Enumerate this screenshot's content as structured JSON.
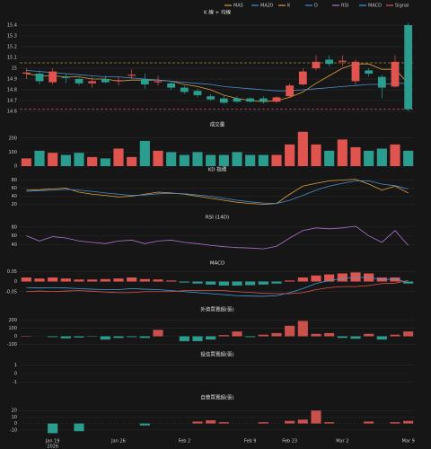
{
  "chart_data": [
    {
      "type": "candlestick",
      "title": "K 線 + 均線",
      "year_label": "2026",
      "categories": [
        null,
        null,
        "Jan 19",
        null,
        null,
        null,
        null,
        "Jan 26",
        null,
        null,
        null,
        null,
        "Feb 2",
        null,
        null,
        null,
        null,
        "Feb 9",
        null,
        null,
        "Feb 23",
        null,
        null,
        null,
        "Mar 2",
        null,
        null,
        null,
        null,
        "Mar 9"
      ],
      "open": [
        14.95,
        14.95,
        14.87,
        14.92,
        14.9,
        14.86,
        14.9,
        14.88,
        14.93,
        14.9,
        14.87,
        14.86,
        14.82,
        14.79,
        14.74,
        14.72,
        14.72,
        14.72,
        14.72,
        14.69,
        14.74,
        14.85,
        15.0,
        15.08,
        15.06,
        14.88,
        14.98,
        14.92,
        14.83,
        15.4
      ],
      "high": [
        15.0,
        14.98,
        15.0,
        14.95,
        14.92,
        14.92,
        14.93,
        14.92,
        14.99,
        14.95,
        14.93,
        14.88,
        14.84,
        14.81,
        14.76,
        14.74,
        14.74,
        14.73,
        14.74,
        14.74,
        14.86,
        15.0,
        15.12,
        15.12,
        15.12,
        15.08,
        15.0,
        14.94,
        15.12,
        15.42
      ],
      "low": [
        14.9,
        14.85,
        14.85,
        14.86,
        14.84,
        14.82,
        14.86,
        14.84,
        14.9,
        14.81,
        14.84,
        14.8,
        14.76,
        14.73,
        14.7,
        14.67,
        14.68,
        14.68,
        14.67,
        14.68,
        14.73,
        14.84,
        14.98,
        15.02,
        15.02,
        14.85,
        14.92,
        14.72,
        14.82,
        14.6
      ],
      "close": [
        14.96,
        14.88,
        14.97,
        14.91,
        14.86,
        14.88,
        14.87,
        14.89,
        14.94,
        14.85,
        14.88,
        14.82,
        14.78,
        14.75,
        14.71,
        14.68,
        14.69,
        14.69,
        14.69,
        14.73,
        14.84,
        14.97,
        15.06,
        15.04,
        15.07,
        15.06,
        14.95,
        14.82,
        15.06,
        14.62
      ],
      "up_color": "#e0544f",
      "down_color": "#2a9d8f",
      "series": [
        {
          "name": "MA5",
          "color": "#e0a040",
          "values": [
            14.95,
            14.93,
            14.93,
            14.92,
            14.92,
            14.9,
            14.9,
            14.88,
            14.89,
            14.89,
            14.89,
            14.88,
            14.85,
            14.83,
            14.8,
            14.75,
            14.72,
            14.7,
            14.69,
            14.7,
            14.73,
            14.78,
            14.86,
            14.93,
            15.0,
            15.04,
            15.04,
            14.99,
            14.99,
            14.86
          ]
        },
        {
          "name": "MA20",
          "color": "#4a8fd0",
          "values": [
            14.98,
            14.97,
            14.96,
            14.95,
            14.94,
            14.93,
            14.92,
            14.92,
            14.91,
            14.9,
            14.89,
            14.88,
            14.87,
            14.86,
            14.85,
            14.83,
            14.82,
            14.81,
            14.8,
            14.79,
            14.79,
            14.8,
            14.81,
            14.82,
            14.83,
            14.84,
            14.85,
            14.85,
            14.86,
            14.86
          ]
        }
      ],
      "ref_lines": [
        {
          "value": 15.05,
          "color": "#e8c547"
        },
        {
          "value": 14.62,
          "color": "#e05080"
        }
      ],
      "ylim": [
        14.55,
        15.45
      ],
      "yticks": [
        14.6,
        14.7,
        14.8,
        14.9,
        15,
        15.1,
        15.2,
        15.3,
        15.4
      ]
    },
    {
      "type": "bar",
      "title": "成交量",
      "color_by_candle": true,
      "values": [
        55,
        110,
        95,
        80,
        95,
        65,
        55,
        125,
        65,
        180,
        110,
        100,
        80,
        100,
        80,
        80,
        100,
        80,
        80,
        80,
        155,
        245,
        155,
        110,
        190,
        135,
        110,
        125,
        155,
        110
      ],
      "ylim": [
        0,
        250
      ],
      "yticks": [
        0,
        100,
        200
      ]
    },
    {
      "type": "line",
      "title": "KD 指標",
      "series": [
        {
          "name": "K",
          "color": "#e0a040",
          "values": [
            55,
            56,
            58,
            60,
            50,
            45,
            42,
            38,
            40,
            45,
            50,
            48,
            45,
            40,
            35,
            30,
            25,
            22,
            20,
            22,
            45,
            65,
            72,
            78,
            80,
            82,
            70,
            55,
            65,
            48
          ]
        },
        {
          "name": "D",
          "color": "#4a8fd0",
          "values": [
            52,
            54,
            55,
            57,
            55,
            52,
            48,
            45,
            42,
            43,
            46,
            47,
            46,
            43,
            40,
            35,
            30,
            26,
            23,
            22,
            30,
            42,
            55,
            65,
            72,
            78,
            78,
            70,
            66,
            58
          ]
        }
      ],
      "ylim": [
        10,
        90
      ],
      "yticks": [
        20,
        40,
        60,
        80
      ]
    },
    {
      "type": "line",
      "title": "RSI (14D)",
      "series": [
        {
          "name": "RSI",
          "color": "#b070d0",
          "values": [
            60,
            48,
            58,
            55,
            48,
            45,
            42,
            48,
            50,
            42,
            48,
            50,
            45,
            42,
            38,
            35,
            33,
            32,
            30,
            36,
            55,
            72,
            78,
            76,
            78,
            82,
            60,
            45,
            72,
            38
          ]
        }
      ],
      "ylim": [
        20,
        90
      ],
      "yticks": [
        40,
        60,
        80
      ]
    },
    {
      "type": "macd",
      "title": "MACD",
      "pos_color": "#e0544f",
      "neg_color": "#2a9d8f",
      "histogram": [
        0.02,
        0.015,
        0.02,
        0.015,
        0.01,
        0.01,
        0.012,
        0.015,
        0.02,
        0.012,
        0.01,
        0.005,
        -0.005,
        -0.01,
        -0.015,
        -0.02,
        -0.02,
        -0.018,
        -0.015,
        -0.01,
        0.005,
        0.02,
        0.03,
        0.035,
        0.04,
        0.045,
        0.04,
        0.02,
        0.02,
        -0.01
      ],
      "series": [
        {
          "name": "MACD",
          "color": "#3fa0e0",
          "values": [
            -0.03,
            -0.032,
            -0.03,
            -0.032,
            -0.035,
            -0.038,
            -0.04,
            -0.04,
            -0.035,
            -0.038,
            -0.04,
            -0.045,
            -0.05,
            -0.055,
            -0.06,
            -0.065,
            -0.07,
            -0.072,
            -0.073,
            -0.07,
            -0.055,
            -0.035,
            -0.01,
            0.005,
            0.015,
            0.02,
            0.02,
            0.01,
            0.012,
            -0.005
          ]
        },
        {
          "name": "Signal",
          "color": "#e0544f",
          "values": [
            -0.05,
            -0.047,
            -0.05,
            -0.047,
            -0.045,
            -0.048,
            -0.052,
            -0.055,
            -0.055,
            -0.05,
            -0.05,
            -0.05,
            -0.045,
            -0.045,
            -0.045,
            -0.045,
            -0.05,
            -0.054,
            -0.058,
            -0.06,
            -0.06,
            -0.055,
            -0.04,
            -0.03,
            -0.025,
            -0.025,
            -0.02,
            -0.01,
            -0.008,
            0.005
          ]
        }
      ],
      "ylim": [
        -0.1,
        0.06
      ],
      "yticks": [
        -0.05,
        0,
        0.05
      ]
    },
    {
      "type": "bar",
      "title": "外資買賣超(張)",
      "pos_color": "#c9504b",
      "neg_color": "#2a9d8f",
      "values": [
        5,
        0,
        -10,
        -25,
        -15,
        -5,
        -40,
        -20,
        -10,
        -20,
        80,
        0,
        -60,
        -60,
        -40,
        15,
        60,
        -10,
        20,
        40,
        130,
        190,
        30,
        40,
        -20,
        -30,
        30,
        -40,
        20,
        60
      ],
      "ylim": [
        -150,
        250
      ],
      "yticks": [
        -100,
        0,
        100,
        200
      ]
    },
    {
      "type": "bar",
      "title": "投信買賣超(張)",
      "pos_color": "#c9504b",
      "neg_color": "#2a9d8f",
      "values": [
        0,
        0,
        0,
        0,
        0,
        0,
        0,
        0,
        0,
        0,
        0,
        0,
        0,
        0,
        0,
        0,
        0,
        0,
        0,
        0,
        0,
        0,
        0,
        0,
        0,
        0,
        0,
        0,
        0,
        0
      ],
      "ylim": [
        -1.5,
        1.5
      ],
      "yticks": [
        -1,
        0,
        1
      ]
    },
    {
      "type": "bar",
      "title": "自營買賣超(張)",
      "pos_color": "#c9504b",
      "neg_color": "#2a9d8f",
      "values": [
        0,
        0,
        -15,
        0,
        -12,
        0,
        0,
        0,
        0,
        -3,
        0,
        0,
        0,
        3,
        5,
        2,
        0,
        0,
        2,
        0,
        4,
        6,
        20,
        2,
        0,
        0,
        3,
        0,
        2,
        4
      ],
      "ylim": [
        -20,
        30
      ],
      "yticks": [
        -10,
        0,
        10,
        20
      ]
    }
  ]
}
